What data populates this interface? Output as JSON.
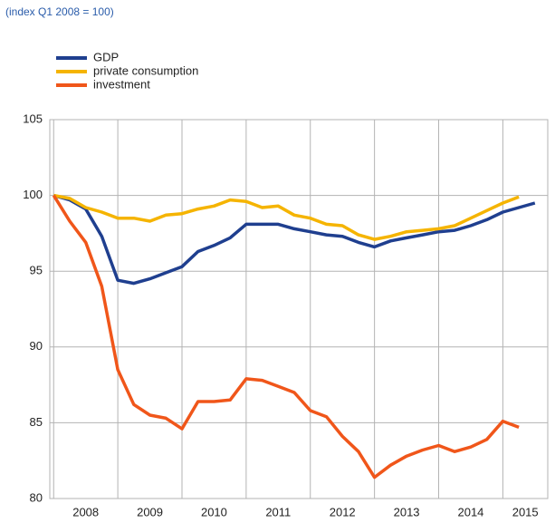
{
  "chart_data": {
    "type": "line",
    "subtitle": "(index Q1 2008 = 100)",
    "x": [
      2008,
      2008.25,
      2008.5,
      2008.75,
      2009,
      2009.25,
      2009.5,
      2009.75,
      2010,
      2010.25,
      2010.5,
      2010.75,
      2011,
      2011.25,
      2011.5,
      2011.75,
      2012,
      2012.25,
      2012.5,
      2012.75,
      2013,
      2013.25,
      2013.5,
      2013.75,
      2014,
      2014.25,
      2014.5,
      2014.75,
      2015,
      2015.25,
      2015.5
    ],
    "series": [
      {
        "name": "GDP",
        "color": "#1f3f8f",
        "values": [
          100,
          99.7,
          99.1,
          97.3,
          94.4,
          94.2,
          94.5,
          94.9,
          95.3,
          96.3,
          96.7,
          97.2,
          98.1,
          98.1,
          98.1,
          97.8,
          97.6,
          97.4,
          97.3,
          96.9,
          96.6,
          97.0,
          97.2,
          97.4,
          97.6,
          97.7,
          98.0,
          98.4,
          98.9,
          99.2,
          99.5
        ]
      },
      {
        "name": "private consumption",
        "color": "#f5b400",
        "values": [
          100,
          99.8,
          99.2,
          98.9,
          98.5,
          98.5,
          98.3,
          98.7,
          98.8,
          99.1,
          99.3,
          99.7,
          99.6,
          99.2,
          99.3,
          98.7,
          98.5,
          98.1,
          98.0,
          97.4,
          97.1,
          97.3,
          97.6,
          97.7,
          97.8,
          98.0,
          98.5,
          99.0,
          99.5,
          99.9,
          null
        ]
      },
      {
        "name": "investment",
        "color": "#f0561a",
        "values": [
          100,
          98.3,
          96.9,
          94.0,
          88.5,
          86.2,
          85.5,
          85.3,
          84.6,
          86.4,
          86.4,
          86.5,
          87.9,
          87.8,
          87.4,
          87.0,
          85.8,
          85.4,
          84.1,
          83.1,
          81.4,
          82.2,
          82.8,
          83.2,
          83.5,
          83.1,
          83.4,
          83.9,
          85.1,
          84.7,
          null
        ]
      }
    ],
    "xlim": [
      2007.94,
      2015.7
    ],
    "xticks": [
      2008,
      2009,
      2010,
      2011,
      2012,
      2013,
      2014,
      2015
    ],
    "ylim": [
      80,
      105
    ],
    "yticks": [
      80,
      85,
      90,
      95,
      100,
      105
    ],
    "grid": true
  }
}
